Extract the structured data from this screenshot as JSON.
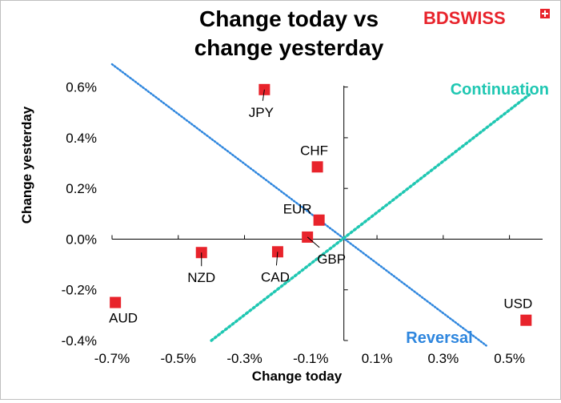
{
  "header": {
    "title_line1": "Change today vs",
    "title_line2": "change yesterday"
  },
  "logo": {
    "part1": "BD",
    "part2": "SWISS",
    "color1": "#e8232b",
    "color2": "#e8232b"
  },
  "colors": {
    "points": "#e8232b",
    "reversal": "#2e86de",
    "continuation": "#1fc7b2",
    "axis": "#000000"
  },
  "chart_data": {
    "type": "scatter",
    "title": "Change today vs change yesterday",
    "xlabel": "Change today",
    "ylabel": "Change yesterday",
    "xlim": [
      -0.7,
      0.6
    ],
    "ylim": [
      -0.4,
      0.7
    ],
    "x_ticks": [
      -0.7,
      -0.5,
      -0.3,
      -0.1,
      0.1,
      0.3,
      0.5
    ],
    "x_tick_labels": [
      "-0.7%",
      "-0.5%",
      "-0.3%",
      "-0.1%",
      "0.1%",
      "0.3%",
      "0.5%"
    ],
    "y_ticks": [
      -0.4,
      -0.2,
      0.0,
      0.2,
      0.4,
      0.6
    ],
    "y_tick_labels": [
      "-0.4%",
      "-0.2%",
      "0.0%",
      "0.2%",
      "0.4%",
      "0.6%"
    ],
    "grid": false,
    "points": [
      {
        "label": "JPY",
        "x": -0.24,
        "y": 0.59
      },
      {
        "label": "CHF",
        "x": -0.08,
        "y": 0.285
      },
      {
        "label": "EUR",
        "x": -0.075,
        "y": 0.075
      },
      {
        "label": "GBP",
        "x": -0.11,
        "y": 0.008
      },
      {
        "label": "NZD",
        "x": -0.43,
        "y": -0.053
      },
      {
        "label": "CAD",
        "x": -0.2,
        "y": -0.05
      },
      {
        "label": "AUD",
        "x": -0.69,
        "y": -0.25
      },
      {
        "label": "USD",
        "x": 0.55,
        "y": -0.32
      }
    ],
    "reference_lines": [
      {
        "label": "Reversal",
        "from": [
          -0.7,
          0.69
        ],
        "to": [
          0.43,
          -0.42
        ]
      },
      {
        "label": "Continuation",
        "from": [
          -0.4,
          -0.4
        ],
        "to": [
          0.56,
          0.57
        ]
      }
    ]
  }
}
